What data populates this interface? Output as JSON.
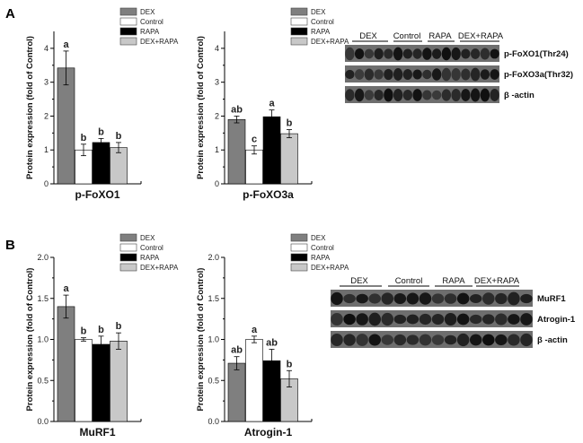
{
  "panels": [
    {
      "letter": "A"
    },
    {
      "letter": "B"
    }
  ],
  "colors": {
    "DEX": "#7f7f7f",
    "Control": "#ffffff",
    "RAPA": "#000000",
    "DEX+RAPA": "#c8c8c8"
  },
  "chart_data": [
    {
      "type": "bar",
      "xlabel": "p-FoXO1",
      "ylabel": "Protein expression (fold of Control)",
      "ylim": [
        0,
        4.5
      ],
      "yticks": [
        "0",
        "1",
        "2",
        "3",
        "4"
      ],
      "legend": [
        "DEX",
        "Control",
        "RAPA",
        "DEX+RAPA"
      ],
      "legend_position": "top-right",
      "categories": [
        "DEX",
        "Control",
        "RAPA",
        "DEX+RAPA"
      ],
      "values": [
        3.42,
        1.0,
        1.22,
        1.07
      ],
      "errors": [
        0.5,
        0.17,
        0.12,
        0.15
      ],
      "significance": [
        "a",
        "b",
        "b",
        "b"
      ]
    },
    {
      "type": "bar",
      "xlabel": "p-FoXO3a",
      "ylabel": "Protein expression (fold of Control)",
      "ylim": [
        0,
        4.5
      ],
      "yticks": [
        "0",
        "1",
        "2",
        "3",
        "4"
      ],
      "legend": [
        "DEX",
        "Control",
        "RAPA",
        "DEX+RAPA"
      ],
      "legend_position": "top-right",
      "categories": [
        "DEX",
        "Control",
        "RAPA",
        "DEX+RAPA"
      ],
      "values": [
        1.9,
        1.0,
        1.98,
        1.48
      ],
      "errors": [
        0.1,
        0.12,
        0.2,
        0.12
      ],
      "significance": [
        "ab",
        "c",
        "a",
        "b"
      ]
    },
    {
      "type": "bar",
      "xlabel": "MuRF1",
      "ylabel": "Protein expression (fold of Control)",
      "ylim": [
        0,
        2.0
      ],
      "yticks": [
        "0.0",
        "0.5",
        "1.0",
        "1.5",
        "2.0"
      ],
      "legend": [
        "DEX",
        "Control",
        "RAPA",
        "DEX+RAPA"
      ],
      "legend_position": "top-right",
      "categories": [
        "DEX",
        "Control",
        "RAPA",
        "DEX+RAPA"
      ],
      "values": [
        1.4,
        1.0,
        0.94,
        0.98
      ],
      "errors": [
        0.14,
        0.02,
        0.1,
        0.1
      ],
      "significance": [
        "a",
        "b",
        "b",
        "b"
      ]
    },
    {
      "type": "bar",
      "xlabel": "Atrogin-1",
      "ylabel": "Protein expression (fold of Control)",
      "ylim": [
        0,
        2.0
      ],
      "yticks": [
        "0.0",
        "0.5",
        "1.0",
        "1.5",
        "2.0"
      ],
      "legend": [
        "DEX",
        "Control",
        "RAPA",
        "DEX+RAPA"
      ],
      "legend_position": "top-right",
      "categories": [
        "DEX",
        "Control",
        "RAPA",
        "DEX+RAPA"
      ],
      "values": [
        0.71,
        1.0,
        0.74,
        0.52
      ],
      "errors": [
        0.08,
        0.04,
        0.14,
        0.1
      ],
      "significance": [
        "ab",
        "a",
        "ab",
        "b"
      ]
    }
  ],
  "blots": [
    {
      "groups": [
        "DEX",
        "Control",
        "RAPA",
        "DEX+RAPA"
      ],
      "bands": [
        "p-FoXO1(Thr24)",
        "p-FoXO3a(Thr32)",
        "β -actin"
      ]
    },
    {
      "groups": [
        "DEX",
        "Control",
        "RAPA",
        "DEX+RAPA"
      ],
      "bands": [
        "MuRF1",
        "Atrogin-1",
        "β -actin"
      ]
    }
  ]
}
